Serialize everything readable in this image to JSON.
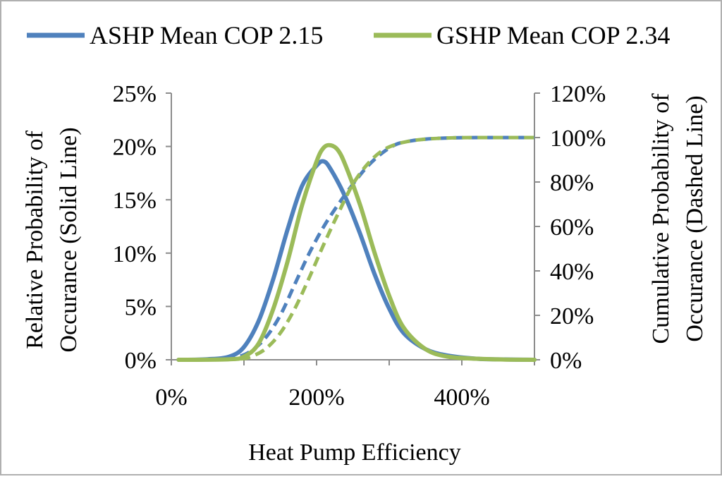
{
  "chart_data": {
    "type": "line",
    "title": "",
    "xlabel": "Heat Pump Efficiency",
    "ylabel_left": [
      "Relative Probability of",
      "Occurance (Solid Line)"
    ],
    "ylabel_right": [
      "Cumulative Probability of",
      "Occurance (Dashed Line)"
    ],
    "xlim": [
      0,
      5.0
    ],
    "ylim_left": [
      0,
      0.25
    ],
    "ylim_right": [
      0,
      1.2
    ],
    "x_ticks": [
      {
        "value": 0,
        "label": "0%"
      },
      {
        "value": 2,
        "label": "200%"
      },
      {
        "value": 4,
        "label": "400%"
      }
    ],
    "y_left_ticks": [
      {
        "value": 0,
        "label": "0%"
      },
      {
        "value": 0.05,
        "label": "5%"
      },
      {
        "value": 0.1,
        "label": "10%"
      },
      {
        "value": 0.15,
        "label": "15%"
      },
      {
        "value": 0.2,
        "label": "20%"
      },
      {
        "value": 0.25,
        "label": "25%"
      }
    ],
    "y_right_ticks": [
      {
        "value": 0,
        "label": "0%"
      },
      {
        "value": 0.2,
        "label": "20%"
      },
      {
        "value": 0.4,
        "label": "40%"
      },
      {
        "value": 0.6,
        "label": "60%"
      },
      {
        "value": 0.8,
        "label": "80%"
      },
      {
        "value": 1.0,
        "label": "100%"
      },
      {
        "value": 1.2,
        "label": "120%"
      }
    ],
    "grid": false,
    "legend_position": "top",
    "series": [
      {
        "name": "ASHP Mean COP 2.15",
        "color": "#4f81bd",
        "relative": {
          "x": [
            0.1,
            0.5,
            0.8,
            1.0,
            1.2,
            1.4,
            1.6,
            1.8,
            2.0,
            2.1,
            2.2,
            2.4,
            2.6,
            2.8,
            3.0,
            3.2,
            3.5,
            3.8,
            4.2,
            4.6,
            5.0
          ],
          "y": [
            0,
            0.0005,
            0.003,
            0.012,
            0.036,
            0.075,
            0.122,
            0.163,
            0.182,
            0.186,
            0.178,
            0.152,
            0.118,
            0.08,
            0.048,
            0.025,
            0.01,
            0.004,
            0.001,
            0.0003,
            0
          ]
        },
        "cumulative": {
          "x": [
            0.1,
            0.6,
            0.9,
            1.1,
            1.3,
            1.5,
            1.7,
            1.9,
            2.1,
            2.3,
            2.5,
            2.7,
            2.9,
            3.1,
            3.3,
            3.5,
            3.8,
            4.2,
            5.0
          ],
          "y": [
            0,
            0.002,
            0.012,
            0.04,
            0.1,
            0.2,
            0.34,
            0.48,
            0.6,
            0.7,
            0.79,
            0.87,
            0.93,
            0.97,
            0.985,
            0.993,
            0.998,
            1.0,
            1.0
          ]
        }
      },
      {
        "name": "GSHP Mean COP 2.34",
        "color": "#9bbb59",
        "relative": {
          "x": [
            0.1,
            0.8,
            1.0,
            1.2,
            1.4,
            1.6,
            1.8,
            2.0,
            2.1,
            2.2,
            2.3,
            2.4,
            2.6,
            2.8,
            3.0,
            3.2,
            3.5,
            3.8,
            4.2,
            4.6,
            5.0
          ],
          "y": [
            0,
            0.0005,
            0.003,
            0.015,
            0.047,
            0.092,
            0.145,
            0.186,
            0.199,
            0.201,
            0.196,
            0.182,
            0.145,
            0.1,
            0.06,
            0.03,
            0.01,
            0.003,
            0.001,
            0.0002,
            0
          ]
        },
        "cumulative": {
          "x": [
            0.1,
            0.9,
            1.1,
            1.3,
            1.5,
            1.7,
            1.9,
            2.1,
            2.3,
            2.5,
            2.7,
            2.9,
            3.1,
            3.3,
            3.5,
            3.8,
            4.2,
            5.0
          ],
          "y": [
            0,
            0.003,
            0.015,
            0.05,
            0.12,
            0.23,
            0.37,
            0.52,
            0.66,
            0.79,
            0.88,
            0.94,
            0.97,
            0.985,
            0.993,
            0.998,
            1.0,
            1.0
          ]
        }
      }
    ]
  }
}
